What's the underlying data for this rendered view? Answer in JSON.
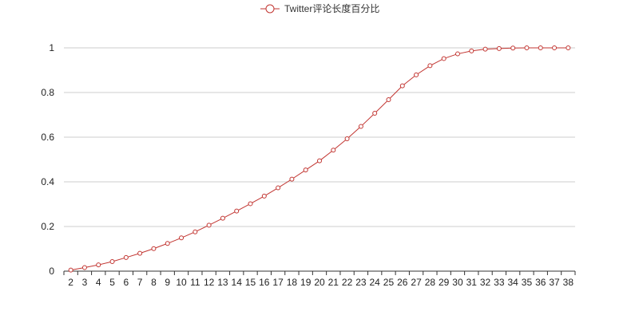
{
  "chart_data": {
    "type": "line",
    "title": "",
    "xlabel": "",
    "ylabel": "",
    "x": [
      2,
      3,
      4,
      5,
      6,
      7,
      8,
      9,
      10,
      11,
      12,
      13,
      14,
      15,
      16,
      17,
      18,
      19,
      20,
      21,
      22,
      23,
      24,
      25,
      26,
      27,
      28,
      29,
      30,
      31,
      32,
      33,
      34,
      35,
      36,
      37,
      38
    ],
    "y_ticks": [
      "0",
      "0.2",
      "0.4",
      "0.6",
      "0.8",
      "1"
    ],
    "ylim": [
      0,
      1
    ],
    "grid": "horizontal",
    "legend_position": "top-center",
    "series": [
      {
        "name": "Twitter评论长度百分比",
        "color": "#c23531",
        "marker": "empty-circle",
        "values": [
          0.005,
          0.016,
          0.028,
          0.043,
          0.061,
          0.08,
          0.101,
          0.124,
          0.149,
          0.176,
          0.206,
          0.237,
          0.269,
          0.302,
          0.336,
          0.373,
          0.412,
          0.453,
          0.494,
          0.542,
          0.593,
          0.648,
          0.707,
          0.768,
          0.83,
          0.879,
          0.92,
          0.952,
          0.973,
          0.986,
          0.994,
          0.997,
          0.999,
          1.0,
          1.0,
          1.0,
          1.0
        ]
      }
    ]
  }
}
